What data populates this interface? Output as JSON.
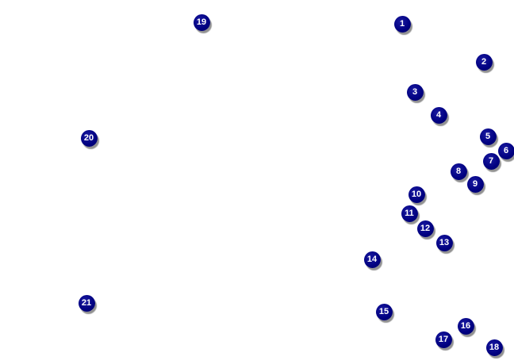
{
  "marker_color": "#000080",
  "markers": [
    {
      "label": "1"
    },
    {
      "label": "2"
    },
    {
      "label": "3"
    },
    {
      "label": "4"
    },
    {
      "label": "5"
    },
    {
      "label": "6"
    },
    {
      "label": "7"
    },
    {
      "label": "8"
    },
    {
      "label": "9"
    },
    {
      "label": "10"
    },
    {
      "label": "11"
    },
    {
      "label": "12"
    },
    {
      "label": "13"
    },
    {
      "label": "14"
    },
    {
      "label": "15"
    },
    {
      "label": "16"
    },
    {
      "label": "17"
    },
    {
      "label": "18"
    },
    {
      "label": "19"
    },
    {
      "label": "20"
    },
    {
      "label": "21"
    }
  ]
}
